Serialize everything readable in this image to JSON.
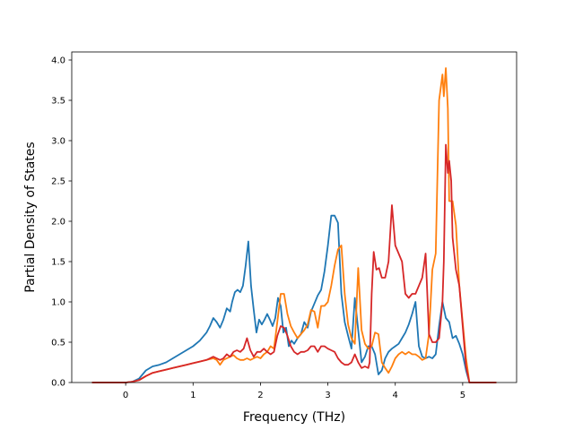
{
  "chart_data": {
    "type": "line",
    "title": "",
    "xlabel": "Frequency (THz)",
    "ylabel": "Partial Density of States",
    "xlim": [
      -0.8,
      5.8
    ],
    "ylim": [
      0,
      4.1
    ],
    "xticks": [
      0,
      1,
      2,
      3,
      4,
      5
    ],
    "xtick_labels": [
      "0",
      "1",
      "2",
      "3",
      "4",
      "5"
    ],
    "yticks": [
      0,
      0.5,
      1,
      1.5,
      2,
      2.5,
      3,
      3.5,
      4
    ],
    "ytick_labels": [
      "0.0",
      "0.5",
      "1.0",
      "1.5",
      "2.0",
      "2.5",
      "3.0",
      "3.5",
      "4.0"
    ],
    "grid": false,
    "legend": "none",
    "series": [
      {
        "color": "#1f77b4",
        "points": [
          [
            -0.5,
            0
          ],
          [
            0,
            0
          ],
          [
            0.1,
            0.01
          ],
          [
            0.2,
            0.05
          ],
          [
            0.3,
            0.15
          ],
          [
            0.4,
            0.2
          ],
          [
            0.5,
            0.22
          ],
          [
            0.6,
            0.25
          ],
          [
            0.7,
            0.3
          ],
          [
            0.8,
            0.35
          ],
          [
            0.9,
            0.4
          ],
          [
            1.0,
            0.45
          ],
          [
            1.1,
            0.52
          ],
          [
            1.2,
            0.62
          ],
          [
            1.25,
            0.7
          ],
          [
            1.3,
            0.8
          ],
          [
            1.35,
            0.75
          ],
          [
            1.4,
            0.68
          ],
          [
            1.45,
            0.78
          ],
          [
            1.5,
            0.92
          ],
          [
            1.55,
            0.88
          ],
          [
            1.58,
            1.0
          ],
          [
            1.62,
            1.12
          ],
          [
            1.66,
            1.15
          ],
          [
            1.7,
            1.12
          ],
          [
            1.74,
            1.2
          ],
          [
            1.78,
            1.45
          ],
          [
            1.82,
            1.75
          ],
          [
            1.86,
            1.2
          ],
          [
            1.9,
            0.9
          ],
          [
            1.94,
            0.62
          ],
          [
            1.98,
            0.78
          ],
          [
            2.02,
            0.72
          ],
          [
            2.06,
            0.78
          ],
          [
            2.1,
            0.85
          ],
          [
            2.14,
            0.78
          ],
          [
            2.18,
            0.7
          ],
          [
            2.22,
            0.8
          ],
          [
            2.26,
            1.05
          ],
          [
            2.3,
            0.95
          ],
          [
            2.34,
            0.62
          ],
          [
            2.38,
            0.68
          ],
          [
            2.42,
            0.45
          ],
          [
            2.46,
            0.52
          ],
          [
            2.5,
            0.48
          ],
          [
            2.55,
            0.55
          ],
          [
            2.6,
            0.6
          ],
          [
            2.65,
            0.75
          ],
          [
            2.7,
            0.68
          ],
          [
            2.75,
            0.88
          ],
          [
            2.8,
            0.98
          ],
          [
            2.85,
            1.08
          ],
          [
            2.9,
            1.15
          ],
          [
            2.95,
            1.38
          ],
          [
            3.0,
            1.7
          ],
          [
            3.05,
            2.07
          ],
          [
            3.1,
            2.07
          ],
          [
            3.15,
            1.98
          ],
          [
            3.2,
            1.1
          ],
          [
            3.25,
            0.75
          ],
          [
            3.3,
            0.58
          ],
          [
            3.35,
            0.42
          ],
          [
            3.4,
            1.05
          ],
          [
            3.45,
            0.65
          ],
          [
            3.5,
            0.25
          ],
          [
            3.55,
            0.32
          ],
          [
            3.6,
            0.45
          ],
          [
            3.65,
            0.45
          ],
          [
            3.7,
            0.35
          ],
          [
            3.75,
            0.1
          ],
          [
            3.8,
            0.15
          ],
          [
            3.85,
            0.3
          ],
          [
            3.9,
            0.38
          ],
          [
            3.95,
            0.42
          ],
          [
            4.0,
            0.45
          ],
          [
            4.05,
            0.48
          ],
          [
            4.1,
            0.55
          ],
          [
            4.15,
            0.62
          ],
          [
            4.2,
            0.72
          ],
          [
            4.25,
            0.85
          ],
          [
            4.3,
            1.0
          ],
          [
            4.35,
            0.45
          ],
          [
            4.4,
            0.32
          ],
          [
            4.45,
            0.3
          ],
          [
            4.5,
            0.32
          ],
          [
            4.55,
            0.3
          ],
          [
            4.6,
            0.35
          ],
          [
            4.65,
            0.7
          ],
          [
            4.7,
            1.0
          ],
          [
            4.75,
            0.8
          ],
          [
            4.8,
            0.75
          ],
          [
            4.85,
            0.55
          ],
          [
            4.9,
            0.58
          ],
          [
            4.95,
            0.48
          ],
          [
            5.0,
            0.35
          ],
          [
            5.05,
            0.15
          ],
          [
            5.1,
            0
          ],
          [
            5.5,
            0
          ]
        ]
      },
      {
        "color": "#ff7f0e",
        "points": [
          [
            -0.5,
            0
          ],
          [
            0,
            0
          ],
          [
            0.1,
            0.01
          ],
          [
            0.2,
            0.03
          ],
          [
            0.3,
            0.08
          ],
          [
            0.4,
            0.12
          ],
          [
            0.5,
            0.14
          ],
          [
            0.6,
            0.16
          ],
          [
            0.7,
            0.18
          ],
          [
            0.8,
            0.2
          ],
          [
            0.9,
            0.22
          ],
          [
            1.0,
            0.24
          ],
          [
            1.1,
            0.26
          ],
          [
            1.2,
            0.28
          ],
          [
            1.3,
            0.3
          ],
          [
            1.35,
            0.28
          ],
          [
            1.4,
            0.22
          ],
          [
            1.45,
            0.28
          ],
          [
            1.5,
            0.3
          ],
          [
            1.55,
            0.32
          ],
          [
            1.6,
            0.34
          ],
          [
            1.65,
            0.3
          ],
          [
            1.7,
            0.28
          ],
          [
            1.75,
            0.28
          ],
          [
            1.8,
            0.3
          ],
          [
            1.85,
            0.28
          ],
          [
            1.9,
            0.3
          ],
          [
            1.95,
            0.32
          ],
          [
            2.0,
            0.3
          ],
          [
            2.05,
            0.35
          ],
          [
            2.1,
            0.38
          ],
          [
            2.15,
            0.45
          ],
          [
            2.2,
            0.42
          ],
          [
            2.25,
            0.75
          ],
          [
            2.3,
            1.1
          ],
          [
            2.35,
            1.1
          ],
          [
            2.4,
            0.85
          ],
          [
            2.45,
            0.7
          ],
          [
            2.5,
            0.62
          ],
          [
            2.55,
            0.55
          ],
          [
            2.6,
            0.6
          ],
          [
            2.65,
            0.65
          ],
          [
            2.7,
            0.72
          ],
          [
            2.75,
            0.9
          ],
          [
            2.8,
            0.88
          ],
          [
            2.85,
            0.68
          ],
          [
            2.9,
            0.95
          ],
          [
            2.95,
            0.95
          ],
          [
            3.0,
            1.0
          ],
          [
            3.05,
            1.2
          ],
          [
            3.1,
            1.45
          ],
          [
            3.15,
            1.65
          ],
          [
            3.2,
            1.7
          ],
          [
            3.25,
            1.1
          ],
          [
            3.3,
            0.72
          ],
          [
            3.35,
            0.55
          ],
          [
            3.4,
            0.48
          ],
          [
            3.45,
            1.42
          ],
          [
            3.5,
            0.65
          ],
          [
            3.55,
            0.48
          ],
          [
            3.6,
            0.42
          ],
          [
            3.65,
            0.45
          ],
          [
            3.7,
            0.62
          ],
          [
            3.75,
            0.6
          ],
          [
            3.8,
            0.25
          ],
          [
            3.85,
            0.18
          ],
          [
            3.9,
            0.12
          ],
          [
            3.95,
            0.2
          ],
          [
            4.0,
            0.3
          ],
          [
            4.05,
            0.35
          ],
          [
            4.1,
            0.38
          ],
          [
            4.15,
            0.35
          ],
          [
            4.2,
            0.38
          ],
          [
            4.25,
            0.35
          ],
          [
            4.3,
            0.35
          ],
          [
            4.35,
            0.32
          ],
          [
            4.4,
            0.28
          ],
          [
            4.45,
            0.3
          ],
          [
            4.5,
            0.6
          ],
          [
            4.55,
            1.4
          ],
          [
            4.6,
            1.6
          ],
          [
            4.65,
            3.5
          ],
          [
            4.7,
            3.82
          ],
          [
            4.72,
            3.55
          ],
          [
            4.75,
            3.9
          ],
          [
            4.78,
            3.4
          ],
          [
            4.8,
            2.25
          ],
          [
            4.85,
            2.25
          ],
          [
            4.9,
            1.95
          ],
          [
            4.95,
            1.2
          ],
          [
            5.0,
            0.75
          ],
          [
            5.05,
            0.3
          ],
          [
            5.1,
            0
          ],
          [
            5.5,
            0
          ]
        ]
      },
      {
        "color": "#d62728",
        "points": [
          [
            -0.5,
            0
          ],
          [
            0,
            0
          ],
          [
            0.1,
            0.01
          ],
          [
            0.2,
            0.03
          ],
          [
            0.3,
            0.08
          ],
          [
            0.4,
            0.12
          ],
          [
            0.5,
            0.14
          ],
          [
            0.6,
            0.16
          ],
          [
            0.7,
            0.18
          ],
          [
            0.8,
            0.2
          ],
          [
            0.9,
            0.22
          ],
          [
            1.0,
            0.24
          ],
          [
            1.1,
            0.26
          ],
          [
            1.2,
            0.28
          ],
          [
            1.3,
            0.32
          ],
          [
            1.35,
            0.3
          ],
          [
            1.4,
            0.28
          ],
          [
            1.45,
            0.3
          ],
          [
            1.5,
            0.35
          ],
          [
            1.55,
            0.32
          ],
          [
            1.6,
            0.38
          ],
          [
            1.65,
            0.4
          ],
          [
            1.7,
            0.38
          ],
          [
            1.75,
            0.42
          ],
          [
            1.8,
            0.55
          ],
          [
            1.85,
            0.4
          ],
          [
            1.9,
            0.32
          ],
          [
            1.95,
            0.38
          ],
          [
            2.0,
            0.38
          ],
          [
            2.05,
            0.42
          ],
          [
            2.1,
            0.38
          ],
          [
            2.15,
            0.35
          ],
          [
            2.2,
            0.38
          ],
          [
            2.25,
            0.58
          ],
          [
            2.3,
            0.7
          ],
          [
            2.35,
            0.68
          ],
          [
            2.4,
            0.58
          ],
          [
            2.45,
            0.45
          ],
          [
            2.5,
            0.38
          ],
          [
            2.55,
            0.35
          ],
          [
            2.6,
            0.38
          ],
          [
            2.65,
            0.38
          ],
          [
            2.7,
            0.4
          ],
          [
            2.75,
            0.45
          ],
          [
            2.8,
            0.45
          ],
          [
            2.85,
            0.38
          ],
          [
            2.9,
            0.45
          ],
          [
            2.95,
            0.45
          ],
          [
            3.0,
            0.42
          ],
          [
            3.05,
            0.4
          ],
          [
            3.1,
            0.38
          ],
          [
            3.15,
            0.3
          ],
          [
            3.2,
            0.25
          ],
          [
            3.25,
            0.22
          ],
          [
            3.3,
            0.22
          ],
          [
            3.35,
            0.25
          ],
          [
            3.4,
            0.35
          ],
          [
            3.45,
            0.25
          ],
          [
            3.5,
            0.18
          ],
          [
            3.55,
            0.2
          ],
          [
            3.6,
            0.18
          ],
          [
            3.62,
            0.25
          ],
          [
            3.65,
            1.1
          ],
          [
            3.68,
            1.62
          ],
          [
            3.72,
            1.4
          ],
          [
            3.76,
            1.42
          ],
          [
            3.8,
            1.3
          ],
          [
            3.85,
            1.3
          ],
          [
            3.9,
            1.5
          ],
          [
            3.95,
            2.2
          ],
          [
            4.0,
            1.7
          ],
          [
            4.05,
            1.6
          ],
          [
            4.1,
            1.5
          ],
          [
            4.15,
            1.1
          ],
          [
            4.2,
            1.05
          ],
          [
            4.25,
            1.1
          ],
          [
            4.3,
            1.1
          ],
          [
            4.35,
            1.2
          ],
          [
            4.4,
            1.3
          ],
          [
            4.45,
            1.6
          ],
          [
            4.5,
            0.6
          ],
          [
            4.55,
            0.5
          ],
          [
            4.6,
            0.5
          ],
          [
            4.65,
            0.55
          ],
          [
            4.7,
            1.0
          ],
          [
            4.72,
            1.5
          ],
          [
            4.75,
            2.95
          ],
          [
            4.78,
            2.6
          ],
          [
            4.8,
            2.75
          ],
          [
            4.83,
            2.5
          ],
          [
            4.85,
            1.8
          ],
          [
            4.9,
            1.4
          ],
          [
            4.95,
            1.2
          ],
          [
            5.0,
            0.7
          ],
          [
            5.05,
            0.2
          ],
          [
            5.1,
            0
          ],
          [
            5.5,
            0
          ]
        ]
      }
    ]
  }
}
